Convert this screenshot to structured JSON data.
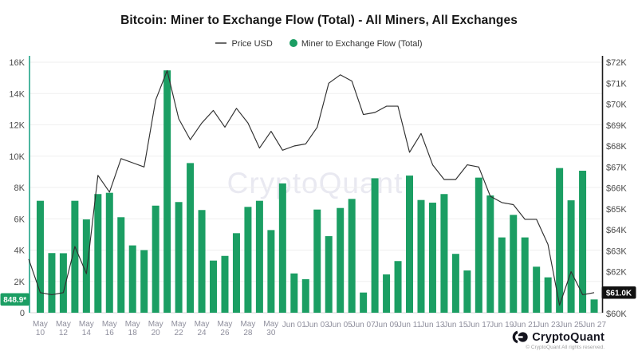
{
  "header": {
    "title": "Bitcoin: Miner to Exchange Flow (Total) - All Miners, All Exchanges"
  },
  "legend": {
    "price_label": "Price USD",
    "flow_label": "Miner to Exchange Flow (Total)"
  },
  "watermark": "CryptoQuant",
  "footer": {
    "brand": "CryptoQuant",
    "copyright": "© CryptoQuant All rights reserved."
  },
  "colors": {
    "flow_bar": "#1b9e63",
    "price_line": "#303030",
    "left_axis": "#4db6a0",
    "right_axis": "#1c1c1c",
    "grid": "#efefef",
    "baseline": "#d8d8d8",
    "badge_flow_bg": "#1b9e63",
    "badge_price_bg": "#111111",
    "watermark": "#e9e9f1"
  },
  "chart_data": {
    "type": "bar",
    "title": "Bitcoin: Miner to Exchange Flow (Total) - All Miners, All Exchanges",
    "legend_position": "top",
    "grid": true,
    "dates": [
      "May 09",
      "May 10",
      "May 11",
      "May 12",
      "May 13",
      "May 14",
      "May 15",
      "May 16",
      "May 17",
      "May 18",
      "May 19",
      "May 20",
      "May 21",
      "May 22",
      "May 23",
      "May 24",
      "May 25",
      "May 26",
      "May 27",
      "May 28",
      "May 29",
      "May 30",
      "May 31",
      "Jun 01",
      "Jun 02",
      "Jun 03",
      "Jun 04",
      "Jun 05",
      "Jun 06",
      "Jun 07",
      "Jun 08",
      "Jun 09",
      "Jun 10",
      "Jun 11",
      "Jun 12",
      "Jun 13",
      "Jun 14",
      "Jun 15",
      "Jun 16",
      "Jun 17",
      "Jun 18",
      "Jun 19",
      "Jun 20",
      "Jun 21",
      "Jun 22",
      "Jun 23",
      "Jun 24",
      "Jun 25",
      "Jun 26",
      "Jun 27"
    ],
    "series": [
      {
        "name": "Miner to Exchange Flow (Total)",
        "type": "bar",
        "axis": "left",
        "unit": "BTC",
        "values": [
          null,
          7150,
          3810,
          3800,
          7150,
          5960,
          7580,
          7660,
          6100,
          4300,
          4000,
          6840,
          15480,
          7070,
          9560,
          6560,
          3330,
          3630,
          5080,
          6760,
          7150,
          5280,
          8260,
          2510,
          2140,
          6590,
          4890,
          6690,
          7270,
          1290,
          8590,
          2450,
          3300,
          8760,
          7200,
          7030,
          7580,
          3760,
          2700,
          8630,
          7490,
          4810,
          6250,
          4810,
          2940,
          2260,
          9240,
          7180,
          9070,
          848.9
        ]
      },
      {
        "name": "Price USD",
        "type": "line",
        "axis": "right",
        "unit": "USD",
        "values": [
          62600,
          61000,
          60900,
          61000,
          63200,
          61900,
          66600,
          65800,
          67400,
          67200,
          67000,
          70200,
          71600,
          69300,
          68300,
          69100,
          69700,
          68900,
          69800,
          69100,
          67900,
          68700,
          67800,
          68000,
          68100,
          68900,
          71000,
          71400,
          71100,
          69500,
          69600,
          69900,
          69900,
          67700,
          68600,
          67100,
          66400,
          66400,
          67100,
          67000,
          65600,
          65300,
          65200,
          64500,
          64500,
          63300,
          60400,
          62000,
          60900,
          61000
        ]
      }
    ],
    "left_axis": {
      "min": 0,
      "max": 16000,
      "tick_step": 2000,
      "tick_labels": [
        "0",
        "2K",
        "4K",
        "6K",
        "8K",
        "10K",
        "12K",
        "14K",
        "16K"
      ]
    },
    "right_axis": {
      "min": 60000,
      "max": 72000,
      "tick_step": 1000,
      "tick_labels": [
        "$60K",
        "$61K",
        "$62K",
        "$63K",
        "$64K",
        "$65K",
        "$66K",
        "$67K",
        "$68K",
        "$69K",
        "$70K",
        "$71K",
        "$72K"
      ],
      "tick_hidden_by_badge": "$61K"
    },
    "x_ticks": [
      "May 10",
      "May 12",
      "May 14",
      "May 16",
      "May 18",
      "May 20",
      "May 22",
      "May 24",
      "May 26",
      "May 28",
      "May 30",
      "Jun 01",
      "Jun 03",
      "Jun 05",
      "Jun 07",
      "Jun 09",
      "Jun 11",
      "Jun 13",
      "Jun 15",
      "Jun 17",
      "Jun 19",
      "Jun 21",
      "Jun 23",
      "Jun 25",
      "Jun 27"
    ],
    "latest": {
      "flow_badge": "848.9*",
      "price_badge": "$61.0K"
    }
  }
}
